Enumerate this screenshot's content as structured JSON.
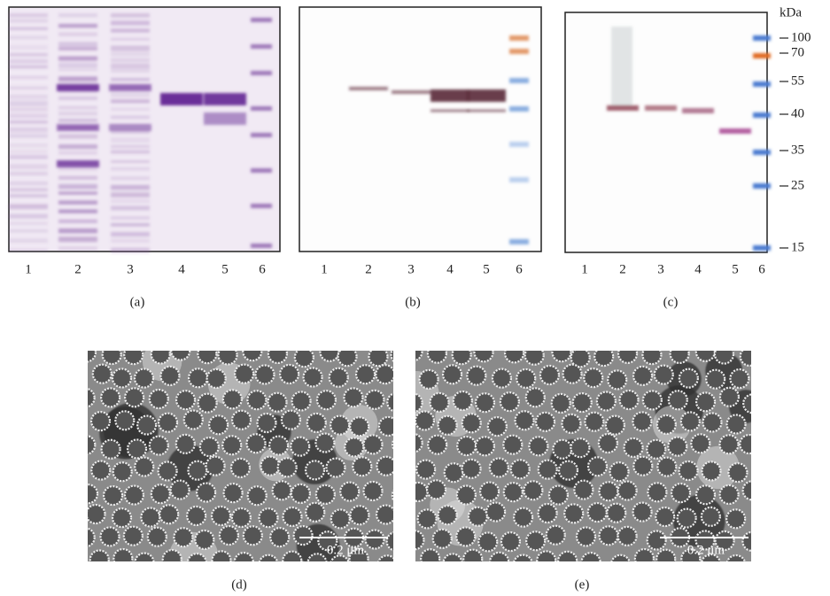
{
  "panels": [
    {
      "label": "(a)",
      "lanes": [
        "1",
        "2",
        "3",
        "4",
        "5",
        "6"
      ]
    },
    {
      "label": "(b)",
      "lanes": [
        "1",
        "2",
        "3",
        "4",
        "5",
        "6"
      ]
    },
    {
      "label": "(c)",
      "lanes": [
        "1",
        "2",
        "3",
        "4",
        "5",
        "6"
      ]
    }
  ],
  "marker": {
    "unit": "kDa",
    "ticks": [
      "100",
      "70",
      "55",
      "40",
      "35",
      "25",
      "15"
    ]
  },
  "micrographs": [
    {
      "label": "(d)",
      "scale_bar": "0.2 μm"
    },
    {
      "label": "(e)",
      "scale_bar": "0.2 μm"
    }
  ]
}
